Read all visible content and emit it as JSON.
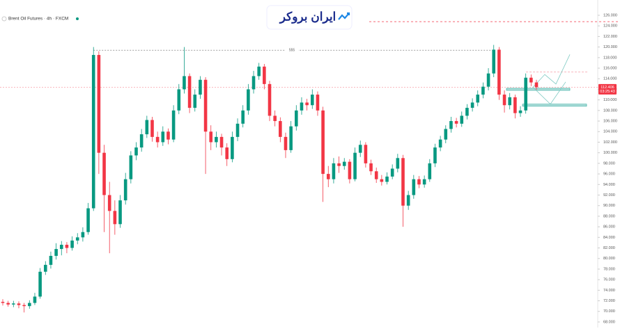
{
  "chart_data": {
    "type": "candlestick",
    "title": "Brent Oil Futures · 4h · FXCM",
    "brand": "ایران بروکر",
    "up_color": "#089981",
    "down_color": "#f23645",
    "ylim": [
      67,
      127
    ],
    "yticks": [
      {
        "value": 68,
        "label": "68.000"
      },
      {
        "value": 70,
        "label": "70.000"
      },
      {
        "value": 72,
        "label": "72.000"
      },
      {
        "value": 74,
        "label": "74.000"
      },
      {
        "value": 76,
        "label": "76.000"
      },
      {
        "value": 78,
        "label": "78.000"
      },
      {
        "value": 80,
        "label": "80.000"
      },
      {
        "value": 82,
        "label": "82.000"
      },
      {
        "value": 84,
        "label": "84.000"
      },
      {
        "value": 86,
        "label": "86.000"
      },
      {
        "value": 88,
        "label": "88.000"
      },
      {
        "value": 90,
        "label": "90.000"
      },
      {
        "value": 92,
        "label": "92.000"
      },
      {
        "value": 94,
        "label": "94.000"
      },
      {
        "value": 96,
        "label": "96.000"
      },
      {
        "value": 98,
        "label": "98.000"
      },
      {
        "value": 100,
        "label": "100.000"
      },
      {
        "value": 102,
        "label": "102.000"
      },
      {
        "value": 104,
        "label": "104.000"
      },
      {
        "value": 106,
        "label": "106.000"
      },
      {
        "value": 108,
        "label": "108.000"
      },
      {
        "value": 110,
        "label": "110.000"
      },
      {
        "value": 112,
        "label": "112.000"
      },
      {
        "value": 114,
        "label": "114.000"
      },
      {
        "value": 116,
        "label": "116.000"
      },
      {
        "value": 118,
        "label": "118.000"
      },
      {
        "value": 120,
        "label": "120.000"
      },
      {
        "value": 122,
        "label": "122.000"
      },
      {
        "value": 124,
        "label": "124.000"
      },
      {
        "value": 126,
        "label": "126.000"
      }
    ],
    "candles": [
      [
        71.8,
        72.3,
        71.1,
        71.6
      ],
      [
        71.6,
        72.0,
        70.9,
        71.3
      ],
      [
        71.3,
        72.0,
        70.8,
        71.5
      ],
      [
        71.5,
        71.9,
        70.6,
        71.2
      ],
      [
        71.2,
        71.6,
        69.8,
        71.0
      ],
      [
        71.0,
        72.1,
        70.5,
        71.6
      ],
      [
        71.6,
        73.5,
        71.2,
        72.8
      ],
      [
        72.8,
        78.2,
        72.4,
        77.5
      ],
      [
        77.5,
        79.5,
        76.9,
        78.8
      ],
      [
        78.8,
        81.3,
        78.1,
        80.5
      ],
      [
        80.5,
        82.9,
        79.8,
        81.8
      ],
      [
        81.8,
        83.3,
        80.6,
        82.6
      ],
      [
        82.6,
        83.1,
        81.0,
        82.0
      ],
      [
        82.0,
        84.2,
        81.5,
        83.4
      ],
      [
        83.4,
        84.8,
        82.7,
        84.0
      ],
      [
        84.0,
        85.9,
        83.2,
        85.0
      ],
      [
        85.0,
        90.5,
        84.5,
        89.5
      ],
      [
        89.5,
        120.0,
        89.0,
        118.5
      ],
      [
        118.5,
        119.2,
        96.0,
        100.0
      ],
      [
        100.0,
        101.5,
        85.0,
        92.0
      ],
      [
        92.0,
        94.5,
        81.0,
        89.0
      ],
      [
        89.0,
        91.0,
        84.5,
        86.5
      ],
      [
        86.5,
        92.0,
        85.8,
        91.0
      ],
      [
        91.0,
        96.2,
        90.2,
        95.0
      ],
      [
        95.0,
        100.3,
        94.2,
        99.5
      ],
      [
        99.5,
        102.0,
        98.6,
        101.0
      ],
      [
        101.0,
        104.5,
        100.2,
        103.5
      ],
      [
        103.5,
        107.0,
        102.8,
        106.2
      ],
      [
        106.2,
        106.8,
        102.1,
        103.0
      ],
      [
        103.0,
        104.0,
        101.0,
        102.0
      ],
      [
        102.0,
        105.0,
        101.3,
        104.0
      ],
      [
        104.0,
        104.6,
        101.6,
        102.5
      ],
      [
        102.5,
        109.0,
        102.0,
        108.0
      ],
      [
        108.0,
        113.0,
        107.3,
        112.0
      ],
      [
        112.0,
        120.0,
        111.2,
        114.5
      ],
      [
        114.5,
        115.0,
        107.5,
        108.5
      ],
      [
        108.5,
        112.0,
        107.8,
        111.0
      ],
      [
        111.0,
        114.5,
        110.2,
        113.8
      ],
      [
        113.8,
        114.3,
        96.0,
        104.0
      ],
      [
        104.0,
        105.2,
        100.5,
        102.0
      ],
      [
        102.0,
        104.0,
        101.0,
        103.0
      ],
      [
        103.0,
        103.6,
        99.5,
        101.0
      ],
      [
        101.0,
        101.8,
        97.5,
        98.8
      ],
      [
        98.8,
        104.0,
        98.2,
        103.0
      ],
      [
        103.0,
        106.5,
        102.2,
        105.5
      ],
      [
        105.5,
        109.0,
        104.8,
        108.0
      ],
      [
        108.0,
        113.0,
        107.2,
        112.0
      ],
      [
        112.0,
        115.5,
        111.2,
        114.5
      ],
      [
        114.5,
        117.0,
        113.8,
        116.3
      ],
      [
        116.3,
        116.8,
        112.0,
        113.0
      ],
      [
        113.0,
        113.6,
        106.0,
        107.0
      ],
      [
        107.0,
        108.0,
        105.0,
        106.0
      ],
      [
        106.0,
        106.7,
        102.0,
        103.0
      ],
      [
        103.0,
        103.8,
        99.0,
        100.5
      ],
      [
        100.5,
        106.0,
        100.0,
        105.0
      ],
      [
        105.0,
        109.0,
        104.2,
        108.0
      ],
      [
        108.0,
        110.5,
        107.2,
        109.5
      ],
      [
        109.5,
        110.2,
        108.0,
        109.0
      ],
      [
        109.0,
        112.0,
        108.3,
        111.0
      ],
      [
        111.0,
        111.6,
        107.0,
        108.0
      ],
      [
        108.0,
        108.7,
        90.7,
        96.0
      ],
      [
        96.0,
        97.5,
        93.5,
        95.0
      ],
      [
        95.0,
        99.0,
        94.2,
        98.0
      ],
      [
        98.0,
        99.3,
        96.2,
        97.5
      ],
      [
        97.5,
        99.0,
        96.8,
        98.3
      ],
      [
        98.3,
        98.8,
        94.2,
        95.0
      ],
      [
        95.0,
        101.0,
        94.6,
        100.0
      ],
      [
        100.0,
        102.3,
        99.2,
        101.5
      ],
      [
        101.5,
        102.0,
        97.2,
        98.0
      ],
      [
        98.0,
        98.7,
        95.8,
        96.5
      ],
      [
        96.5,
        97.2,
        94.3,
        95.0
      ],
      [
        95.0,
        95.8,
        93.8,
        94.5
      ],
      [
        94.5,
        96.3,
        94.0,
        95.5
      ],
      [
        95.5,
        97.8,
        95.0,
        97.0
      ],
      [
        97.0,
        99.8,
        96.3,
        99.0
      ],
      [
        99.0,
        99.6,
        86.0,
        90.0
      ],
      [
        90.0,
        92.8,
        89.2,
        92.0
      ],
      [
        92.0,
        95.8,
        91.3,
        95.0
      ],
      [
        95.0,
        95.6,
        93.3,
        94.0
      ],
      [
        94.0,
        95.7,
        93.4,
        95.0
      ],
      [
        95.0,
        98.8,
        94.5,
        98.0
      ],
      [
        98.0,
        101.7,
        97.3,
        101.0
      ],
      [
        101.0,
        103.2,
        100.3,
        102.5
      ],
      [
        102.5,
        105.2,
        101.8,
        104.5
      ],
      [
        104.5,
        106.8,
        103.8,
        106.0
      ],
      [
        106.0,
        106.6,
        104.8,
        105.5
      ],
      [
        105.5,
        107.8,
        104.9,
        107.0
      ],
      [
        107.0,
        109.2,
        106.3,
        108.5
      ],
      [
        108.5,
        110.3,
        107.8,
        109.5
      ],
      [
        109.5,
        111.8,
        108.8,
        111.0
      ],
      [
        111.0,
        113.3,
        110.3,
        112.5
      ],
      [
        112.5,
        116.0,
        111.8,
        115.0
      ],
      [
        115.0,
        120.4,
        114.3,
        119.5
      ],
      [
        119.5,
        120.0,
        110.0,
        111.0
      ],
      [
        111.0,
        111.8,
        107.6,
        109.0
      ],
      [
        109.0,
        111.3,
        108.2,
        110.5
      ],
      [
        110.5,
        111.0,
        106.5,
        107.5
      ],
      [
        107.5,
        108.8,
        106.8,
        108.0
      ],
      [
        108.0,
        115.0,
        107.4,
        114.2
      ],
      [
        114.2,
        114.8,
        112.6,
        113.3
      ],
      [
        113.3,
        113.8,
        111.9,
        112.4
      ]
    ],
    "current_price": {
      "value": 112.406,
      "label": "112.406"
    },
    "countdown": "03:25:43",
    "reference_line": {
      "value": 119.4,
      "label": "555"
    },
    "resistance_line": 124.8,
    "target_line": 115.3,
    "zones": [
      [
        111.8,
        112.2
      ],
      [
        108.8,
        109.2
      ]
    ],
    "projections": [
      [
        112.4,
        114.8,
        113.0,
        118.6
      ],
      [
        112.4,
        109.2,
        113.4
      ]
    ]
  }
}
